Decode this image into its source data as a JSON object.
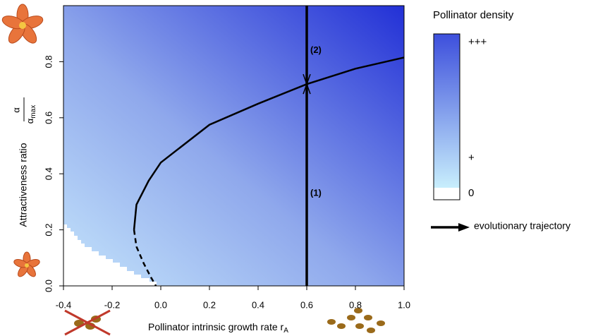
{
  "chart_data": {
    "type": "line",
    "x_label": "Pollinator intrinsic growth rate r",
    "x_label_sub": "A",
    "y_label": "Attractiveness ratio",
    "y_label_num": "α",
    "y_label_den": "α",
    "y_label_den_sub": "max",
    "xlim": [
      -0.4,
      1.0
    ],
    "xticks": [
      -0.4,
      -0.2,
      {
        "value": 0,
        "label": "0.0"
      },
      0.2,
      0.4,
      0.6,
      0.8,
      {
        "value": 1,
        "label": "1.0"
      }
    ],
    "ylim": [
      0,
      1.0
    ],
    "yticks": [
      {
        "value": 0,
        "label": "0.0"
      },
      0.2,
      0.4,
      0.6,
      0.8
    ],
    "curve_solid": {
      "color": "#000000",
      "x": [
        -0.11,
        -0.1,
        -0.05,
        0,
        0.2,
        0.4,
        0.6,
        0.8,
        1.0
      ],
      "values": [
        0.2,
        0.29,
        0.375,
        0.44,
        0.575,
        0.65,
        0.72,
        0.775,
        0.815
      ]
    },
    "curve_dashed": {
      "color": "#000000",
      "x": [
        -0.11,
        -0.1,
        -0.07,
        -0.04,
        -0.02
      ],
      "values": [
        0.2,
        0.14,
        0.08,
        0.03,
        0.0
      ]
    },
    "series": [
      {
        "name": "evolutionary trajectory",
        "color": "#000000",
        "x": [
          0.6,
          0.6
        ],
        "values": [
          0,
          1.0
        ]
      }
    ],
    "equilibrium": 0.72,
    "annotations": [
      "(1)",
      "(2)"
    ],
    "colorbar": {
      "title": "Pollinator density",
      "labels": [
        "+++",
        "+",
        "0"
      ]
    }
  }
}
